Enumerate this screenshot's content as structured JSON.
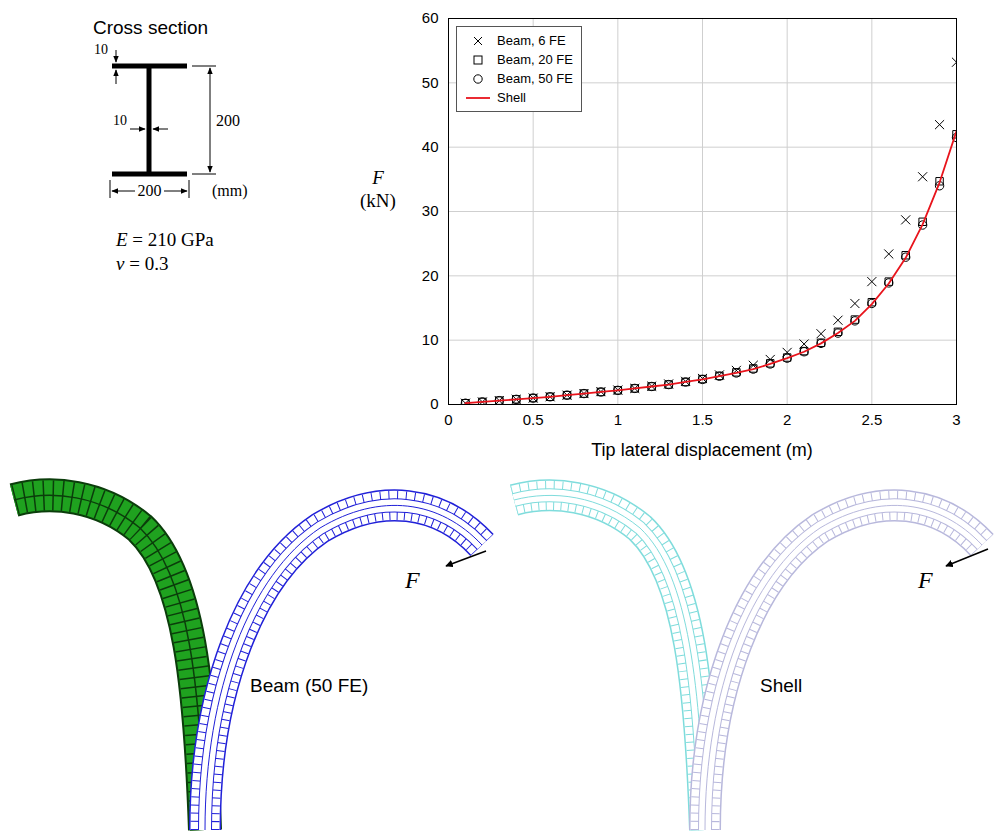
{
  "cross_section": {
    "title": "Cross section",
    "flange_thickness": 10,
    "web_thickness": 10,
    "height": 200,
    "width": 200,
    "unit": "(mm)",
    "material": [
      "E = 210 GPa",
      "ν = 0.3"
    ]
  },
  "chart_data": {
    "type": "line",
    "x_label": "Tip lateral displacement (m)",
    "y_label": "F (kN)",
    "xlim": [
      0,
      3
    ],
    "ylim": [
      0,
      60
    ],
    "xticks": [
      0,
      0.5,
      1,
      1.5,
      2,
      2.5,
      3
    ],
    "yticks": [
      0,
      10,
      20,
      30,
      40,
      50,
      60
    ],
    "grid": true,
    "legend": "top-left",
    "x": [
      0.1,
      0.2,
      0.3,
      0.4,
      0.5,
      0.6,
      0.7,
      0.8,
      0.9,
      1.0,
      1.1,
      1.2,
      1.3,
      1.4,
      1.5,
      1.6,
      1.7,
      1.8,
      1.9,
      2.0,
      2.1,
      2.2,
      2.3,
      2.4,
      2.5,
      2.6,
      2.7,
      2.8,
      2.9,
      3.0
    ],
    "series": [
      {
        "name": "Beam, 6 FE",
        "type": "scatter",
        "marker": "times",
        "color": "#000000",
        "values": [
          0.2,
          0.4,
          0.6,
          0.8,
          1.0,
          1.2,
          1.45,
          1.7,
          2.0,
          2.25,
          2.5,
          2.85,
          3.2,
          3.6,
          4.05,
          4.6,
          5.3,
          6.1,
          7.0,
          8.1,
          9.4,
          11.0,
          13.1,
          15.7,
          19.1,
          23.4,
          28.7,
          35.4,
          43.5,
          53.2
        ]
      },
      {
        "name": "Beam, 20 FE",
        "type": "scatter",
        "marker": "square",
        "color": "#000000",
        "values": [
          0.2,
          0.4,
          0.6,
          0.8,
          1.0,
          1.2,
          1.45,
          1.7,
          1.95,
          2.2,
          2.5,
          2.8,
          3.1,
          3.5,
          3.95,
          4.45,
          5.0,
          5.6,
          6.4,
          7.3,
          8.3,
          9.6,
          11.3,
          13.2,
          15.9,
          19.1,
          23.2,
          28.4,
          34.7,
          42.0
        ]
      },
      {
        "name": "Beam, 50 FE",
        "type": "scatter",
        "marker": "circle",
        "color": "#000000",
        "values": [
          0.2,
          0.4,
          0.6,
          0.8,
          1.0,
          1.2,
          1.45,
          1.7,
          1.95,
          2.2,
          2.5,
          2.8,
          3.1,
          3.5,
          3.9,
          4.4,
          4.9,
          5.5,
          6.3,
          7.2,
          8.2,
          9.5,
          11.1,
          13.0,
          15.7,
          18.9,
          22.9,
          27.9,
          34.0,
          41.5
        ]
      },
      {
        "name": "Shell",
        "type": "line",
        "line_style": "solid",
        "color": "#e8141c",
        "values": [
          0.2,
          0.4,
          0.6,
          0.8,
          1.0,
          1.2,
          1.45,
          1.7,
          1.95,
          2.2,
          2.5,
          2.8,
          3.1,
          3.5,
          3.9,
          4.4,
          4.9,
          5.5,
          6.3,
          7.2,
          8.2,
          9.5,
          11.1,
          13.0,
          15.6,
          18.8,
          22.8,
          28.0,
          34.5,
          42.5
        ]
      }
    ]
  },
  "renderings": [
    {
      "label": "Beam (50 FE)",
      "load": "F"
    },
    {
      "label": "Shell",
      "load": "F"
    }
  ]
}
